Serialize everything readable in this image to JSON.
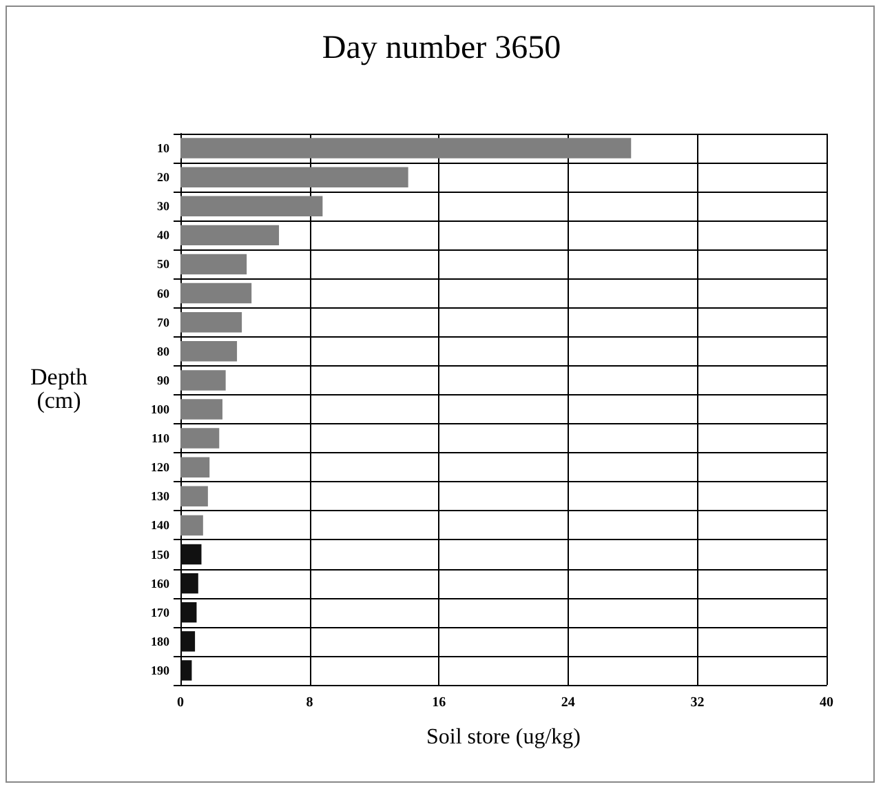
{
  "chart_data": {
    "type": "bar",
    "orientation": "horizontal",
    "title": "Day number 3650",
    "xlabel": "Soil store (ug/kg)",
    "ylabel": "Depth\n(cm)",
    "categories": [
      "10",
      "20",
      "30",
      "40",
      "50",
      "60",
      "70",
      "80",
      "90",
      "100",
      "110",
      "120",
      "130",
      "140",
      "150",
      "160",
      "170",
      "180",
      "190"
    ],
    "values": [
      27.9,
      14.1,
      8.8,
      6.1,
      4.1,
      4.4,
      3.8,
      3.5,
      2.8,
      2.6,
      2.4,
      1.8,
      1.7,
      1.4,
      1.3,
      1.1,
      1.0,
      0.9,
      0.7
    ],
    "colors": [
      "#7f7f7f",
      "#7f7f7f",
      "#7f7f7f",
      "#7f7f7f",
      "#7f7f7f",
      "#7f7f7f",
      "#7f7f7f",
      "#7f7f7f",
      "#7f7f7f",
      "#7f7f7f",
      "#7f7f7f",
      "#7f7f7f",
      "#7f7f7f",
      "#7f7f7f",
      "#111111",
      "#111111",
      "#111111",
      "#111111",
      "#111111"
    ],
    "xlim": [
      0,
      40
    ],
    "xticks": [
      0,
      8,
      16,
      24,
      32,
      40
    ],
    "grid": true
  }
}
